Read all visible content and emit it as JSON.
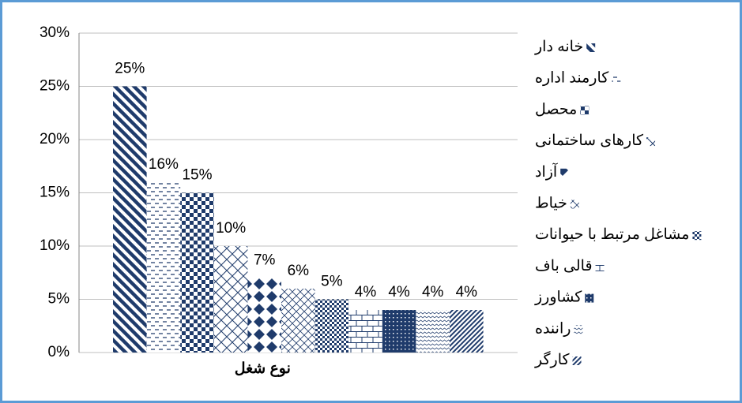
{
  "chart_data": {
    "type": "bar",
    "categories": [
      "نوع شغل"
    ],
    "ylim": [
      0,
      30
    ],
    "yticks": [
      {
        "value": 0,
        "label": "0%"
      },
      {
        "value": 5,
        "label": "5%"
      },
      {
        "value": 10,
        "label": "10%"
      },
      {
        "value": 15,
        "label": "15%"
      },
      {
        "value": 20,
        "label": "20%"
      },
      {
        "value": 25,
        "label": "25%"
      },
      {
        "value": 30,
        "label": "30%"
      }
    ],
    "grid": true,
    "legend": "right",
    "color": "#1f3b6b",
    "series": [
      {
        "name": "خانه دار",
        "pattern": "diag-down",
        "values": [
          25
        ],
        "value_labels": [
          "25%"
        ]
      },
      {
        "name": "کارمند اداره",
        "pattern": "dash",
        "values": [
          16
        ],
        "value_labels": [
          "16%"
        ]
      },
      {
        "name": "محصل",
        "pattern": "checker",
        "values": [
          15
        ],
        "value_labels": [
          "15%"
        ]
      },
      {
        "name": "کارهای ساختمانی",
        "pattern": "weave",
        "values": [
          10
        ],
        "value_labels": [
          "10%"
        ]
      },
      {
        "name": "آزاد",
        "pattern": "diamond",
        "values": [
          7
        ],
        "value_labels": [
          "7%"
        ]
      },
      {
        "name": "خیاط",
        "pattern": "cross",
        "values": [
          6
        ],
        "value_labels": [
          "6%"
        ]
      },
      {
        "name": "مشاغل مرتبط با حیوانات",
        "pattern": "checker-small",
        "values": [
          5
        ],
        "value_labels": [
          "5%"
        ]
      },
      {
        "name": "قالی باف",
        "pattern": "brick",
        "values": [
          4
        ],
        "value_labels": [
          "4%"
        ]
      },
      {
        "name": "کشاورز",
        "pattern": "dots",
        "values": [
          4
        ],
        "value_labels": [
          "4%"
        ]
      },
      {
        "name": "راننده",
        "pattern": "wave",
        "values": [
          4
        ],
        "value_labels": [
          "4%"
        ]
      },
      {
        "name": "کارگر",
        "pattern": "diag-up",
        "values": [
          4
        ],
        "value_labels": [
          "4%"
        ]
      }
    ]
  }
}
